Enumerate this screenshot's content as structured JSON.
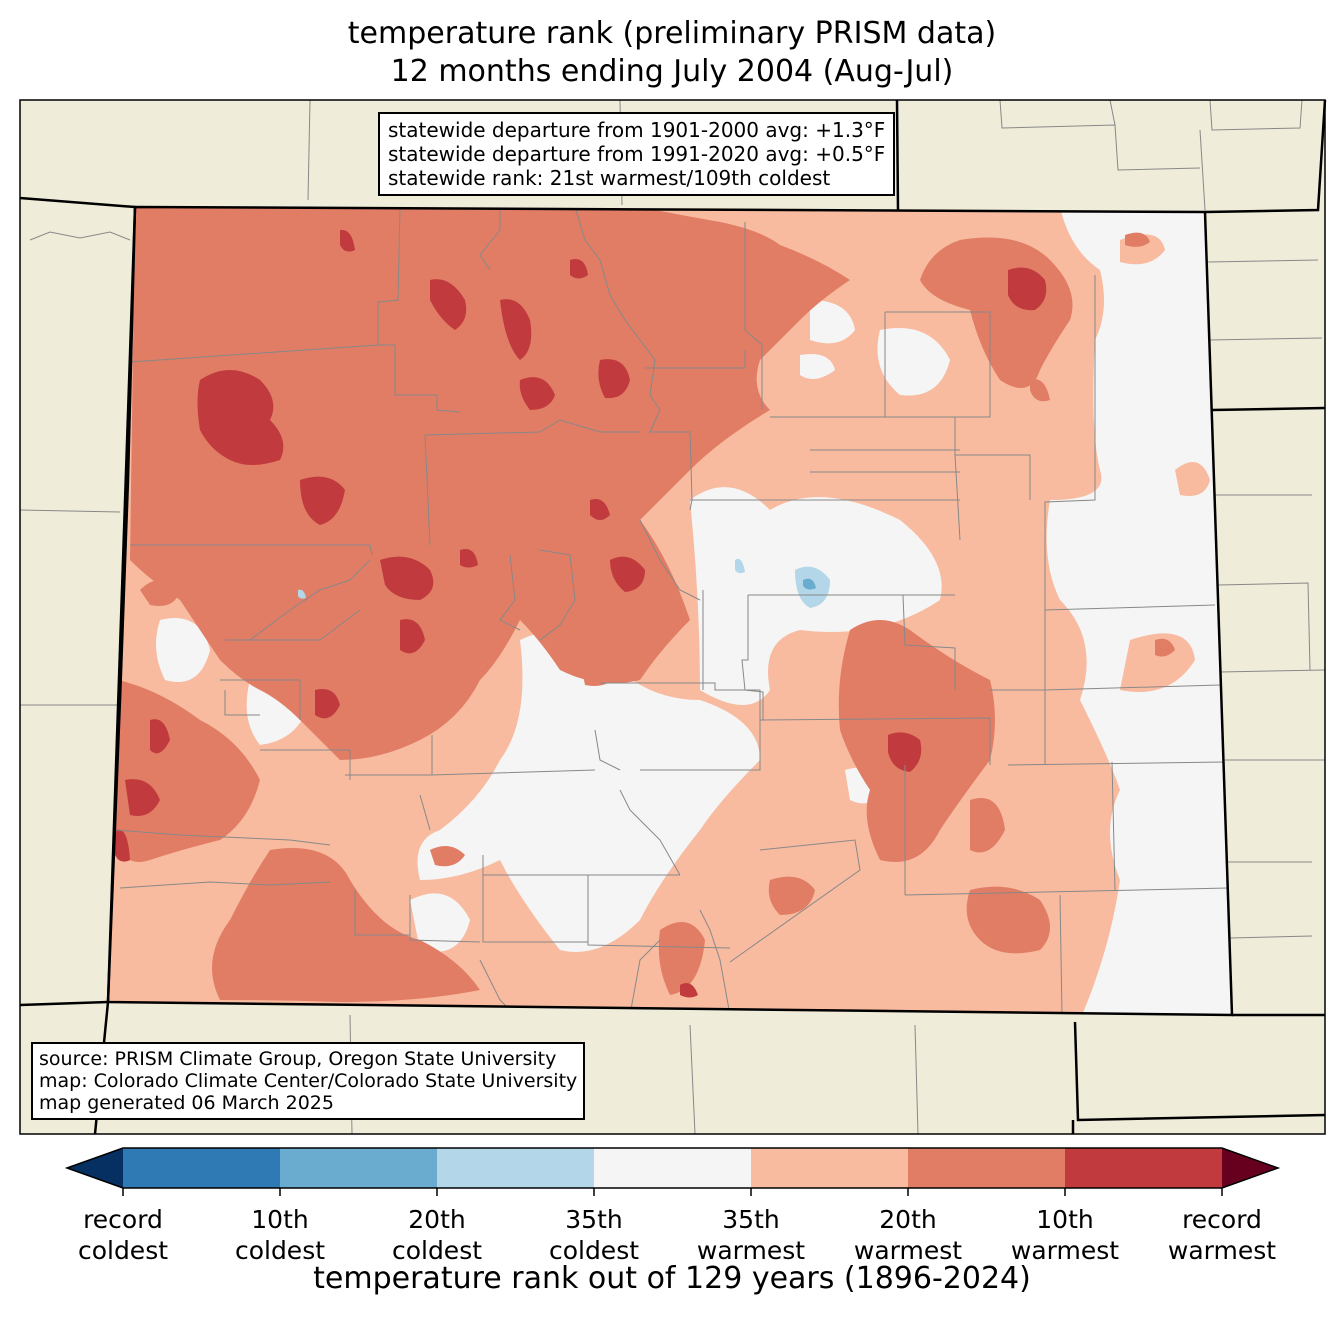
{
  "title": {
    "line1": "temperature rank (preliminary PRISM data)",
    "line2": "12 months ending July 2004 (Aug-Jul)"
  },
  "stats_box": {
    "line1": "statewide departure from 1901-2000 avg: +1.3°F",
    "line2": "statewide departure from 1991-2020 avg: +0.5°F",
    "line3": "statewide rank: 21st warmest/109th coldest"
  },
  "source_box": {
    "line1": "source: PRISM Climate Group, Oregon State University",
    "line2": "map: Colorado Climate Center/Colorado State University",
    "line3": "map generated 06 March 2025"
  },
  "colorbar": {
    "title": "temperature rank out of 129 years (1896-2024)",
    "ticks": [
      {
        "line1": "record",
        "line2": "coldest"
      },
      {
        "line1": "10th",
        "line2": "coldest"
      },
      {
        "line1": "20th",
        "line2": "coldest"
      },
      {
        "line1": "35th",
        "line2": "coldest"
      },
      {
        "line1": "35th",
        "line2": "warmest"
      },
      {
        "line1": "20th",
        "line2": "warmest"
      },
      {
        "line1": "10th",
        "line2": "warmest"
      },
      {
        "line1": "record",
        "line2": "warmest"
      }
    ],
    "colors": [
      "#053061",
      "#2f79b5",
      "#6aacd0",
      "#b3d6e8",
      "#f5f5f5",
      "#f8bba0",
      "#e17d65",
      "#c13b3e",
      "#67001f"
    ]
  },
  "map_colors": {
    "background_land": "#efecda",
    "county_lines": "#888888",
    "state_lines": "#000000"
  }
}
